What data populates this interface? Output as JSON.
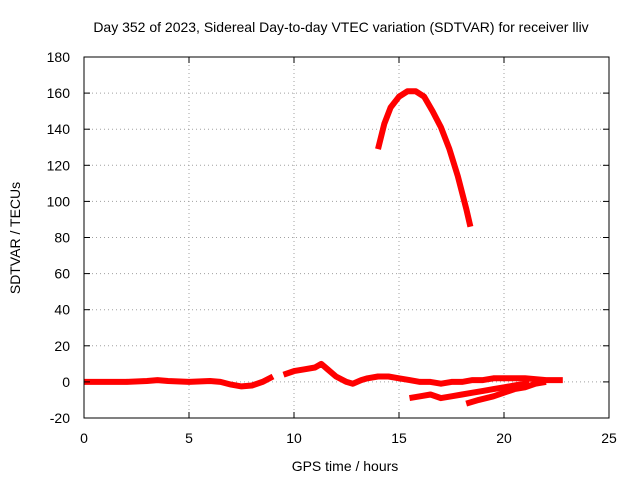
{
  "chart_data": {
    "type": "line",
    "title": "Day 352 of 2023, Sidereal Day-to-day VTEC variation (SDTVAR) for receiver lliv",
    "xlabel": "GPS time / hours",
    "ylabel": "SDTVAR / TECUs",
    "xlim": [
      0,
      25
    ],
    "ylim": [
      -20,
      180
    ],
    "xticks": [
      0,
      5,
      10,
      15,
      20,
      25
    ],
    "yticks": [
      -20,
      0,
      20,
      40,
      60,
      80,
      100,
      120,
      140,
      160,
      180
    ],
    "grid": true,
    "legend": "none",
    "series_color": "#ff0000",
    "series": [
      {
        "x": [
          0,
          1,
          2,
          3,
          3.5,
          4,
          5,
          6,
          6.5,
          7,
          7.5,
          8,
          8.5,
          9
        ],
        "y": [
          0,
          0,
          0,
          0.5,
          1,
          0.5,
          0,
          0.5,
          0,
          -1.5,
          -2.5,
          -2,
          0,
          3
        ]
      },
      {
        "x": [
          9.5,
          10,
          10.5,
          11,
          11.3,
          11.6,
          12,
          12.5,
          12.8,
          13.2,
          13.5,
          14,
          14.5,
          15,
          15.5,
          16,
          16.5,
          17,
          17.5,
          18,
          18.5,
          19,
          19.5,
          20,
          21,
          22,
          22.8
        ],
        "y": [
          4,
          6,
          7,
          8,
          10,
          7,
          3,
          0,
          -1,
          1,
          2,
          3,
          3,
          2,
          1,
          0,
          0,
          -1,
          0,
          0,
          1,
          1,
          2,
          2,
          2,
          1,
          1
        ]
      },
      {
        "x": [
          15.5,
          16,
          16.5,
          17,
          17.5,
          18,
          18.5,
          19,
          19.5,
          20,
          20.5,
          21,
          21.2
        ],
        "y": [
          -9,
          -8,
          -7,
          -9,
          -8,
          -7,
          -6,
          -5,
          -4,
          -3,
          -2,
          -1,
          -1
        ]
      },
      {
        "x": [
          18.2,
          18.8,
          19.5,
          20,
          20.5,
          21,
          21.5,
          22
        ],
        "y": [
          -12,
          -10,
          -8,
          -6,
          -4,
          -3,
          -1,
          0
        ]
      },
      {
        "x": [
          14,
          14.3,
          14.6,
          15,
          15.4,
          15.8,
          16.2,
          16.6,
          17,
          17.4,
          17.8,
          18.2,
          18.4
        ],
        "y": [
          129,
          143,
          152,
          158,
          161,
          161,
          158,
          150,
          141,
          129,
          114,
          96,
          86
        ]
      }
    ]
  }
}
